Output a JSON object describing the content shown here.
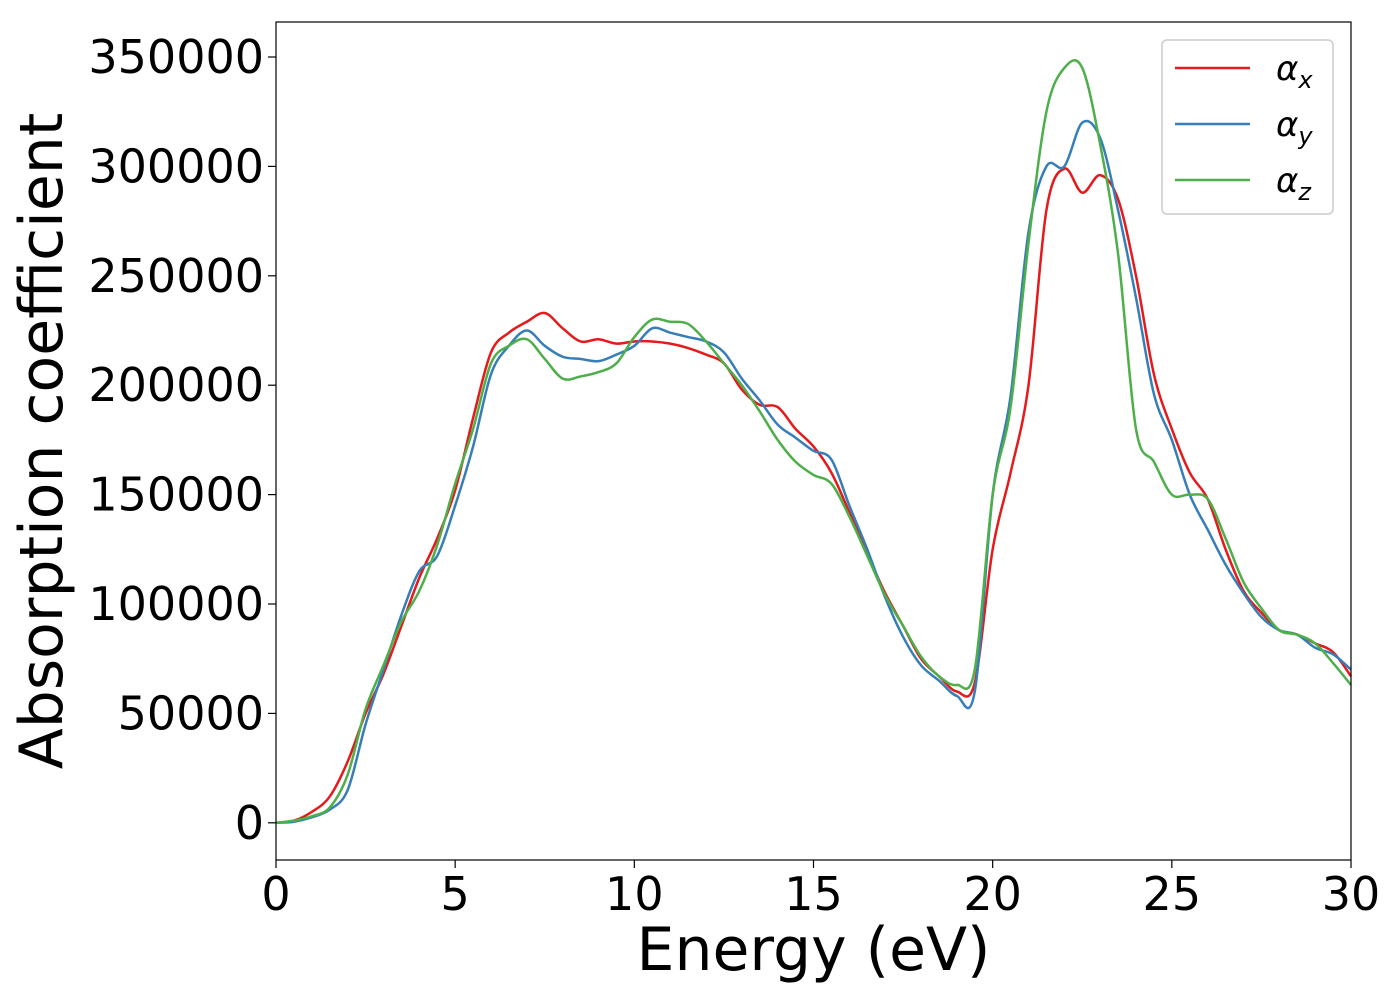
{
  "chart_data": {
    "type": "line",
    "title": "",
    "xlabel": "Energy (eV)",
    "ylabel": "Absorption coefficient",
    "xlim": [
      0,
      30
    ],
    "ylim": [
      -17000,
      366000
    ],
    "xticks": [
      0,
      5,
      10,
      15,
      20,
      25,
      30
    ],
    "yticks": [
      0,
      50000,
      100000,
      150000,
      200000,
      250000,
      300000,
      350000
    ],
    "grid": false,
    "legend_position": "top-right",
    "series": [
      {
        "name": "αx",
        "name_base": "α",
        "name_sub": "x",
        "color": "#e41a1c",
        "x": [
          0,
          0.5,
          1,
          1.5,
          2,
          2.5,
          3,
          3.5,
          4,
          4.5,
          5,
          5.5,
          6,
          6.5,
          7,
          7.5,
          8,
          8.5,
          9,
          9.5,
          10,
          10.5,
          11,
          11.5,
          12,
          12.5,
          13,
          13.5,
          14,
          14.5,
          15,
          15.5,
          16,
          16.5,
          17,
          17.5,
          18,
          18.5,
          19,
          19.5,
          20,
          20.5,
          21,
          21.5,
          22,
          22.5,
          23,
          23.5,
          24,
          24.5,
          25,
          25.5,
          26,
          26.5,
          27,
          27.5,
          28,
          28.5,
          29,
          29.5,
          30
        ],
        "y": [
          0,
          1000,
          5000,
          12000,
          28000,
          50000,
          68000,
          90000,
          112000,
          130000,
          152000,
          185000,
          215000,
          224000,
          229000,
          233000,
          226000,
          220000,
          221000,
          219000,
          220000,
          220000,
          219000,
          217000,
          214000,
          210000,
          198000,
          191000,
          190000,
          180000,
          172000,
          160000,
          142000,
          123000,
          105000,
          90000,
          75000,
          67000,
          60000,
          64000,
          125000,
          160000,
          200000,
          280000,
          299000,
          288000,
          296000,
          285000,
          250000,
          205000,
          180000,
          160000,
          148000,
          125000,
          106000,
          96000,
          88000,
          86000,
          82000,
          78000,
          67000
        ]
      },
      {
        "name": "αy",
        "name_base": "α",
        "name_sub": "y",
        "color": "#377eb8",
        "x": [
          0,
          0.5,
          1,
          1.5,
          2,
          2.5,
          3,
          3.5,
          4,
          4.5,
          5,
          5.5,
          6,
          6.5,
          7,
          7.5,
          8,
          8.5,
          9,
          9.5,
          10,
          10.5,
          11,
          11.5,
          12,
          12.5,
          13,
          13.5,
          14,
          14.5,
          15,
          15.5,
          16,
          16.5,
          17,
          17.5,
          18,
          18.5,
          19,
          19.5,
          20,
          20.5,
          21,
          21.5,
          22,
          22.5,
          23,
          23.5,
          24,
          24.5,
          25,
          25.5,
          26,
          26.5,
          27,
          27.5,
          28,
          28.5,
          29,
          29.5,
          30
        ],
        "y": [
          0,
          500,
          2500,
          6000,
          15000,
          45000,
          70000,
          95000,
          115000,
          122000,
          145000,
          172000,
          205000,
          218000,
          225000,
          218000,
          213000,
          212000,
          211000,
          214000,
          218000,
          226000,
          224000,
          222000,
          220000,
          215000,
          203000,
          193000,
          182000,
          176000,
          170000,
          166000,
          145000,
          125000,
          103000,
          85000,
          72000,
          65000,
          58000,
          60000,
          150000,
          195000,
          270000,
          300000,
          300000,
          320000,
          313000,
          280000,
          240000,
          196000,
          175000,
          150000,
          134000,
          118000,
          105000,
          94000,
          88000,
          86000,
          80000,
          77000,
          70000
        ]
      },
      {
        "name": "αz",
        "name_base": "α",
        "name_sub": "z",
        "color": "#4daf4a",
        "x": [
          0,
          0.5,
          1,
          1.5,
          2,
          2.5,
          3,
          3.5,
          4,
          4.5,
          5,
          5.5,
          6,
          6.5,
          7,
          7.5,
          8,
          8.5,
          9,
          9.5,
          10,
          10.5,
          11,
          11.5,
          12,
          12.5,
          13,
          13.5,
          14,
          14.5,
          15,
          15.5,
          16,
          16.5,
          17,
          17.5,
          18,
          18.5,
          19,
          19.5,
          20,
          20.5,
          21,
          21.5,
          22,
          22.5,
          23,
          23.5,
          24,
          24.5,
          25,
          25.5,
          26,
          26.5,
          27,
          27.5,
          28,
          28.5,
          29,
          29.5,
          30
        ],
        "y": [
          0,
          1000,
          3000,
          7000,
          22000,
          52000,
          72000,
          92000,
          106000,
          127000,
          155000,
          180000,
          210000,
          218000,
          221000,
          212000,
          203000,
          204000,
          206000,
          210000,
          222000,
          230000,
          229000,
          228000,
          220000,
          210000,
          200000,
          188000,
          175000,
          165000,
          159000,
          155000,
          140000,
          122000,
          104000,
          90000,
          76000,
          67000,
          63000,
          70000,
          150000,
          190000,
          265000,
          325000,
          345000,
          345000,
          310000,
          260000,
          180000,
          165000,
          150000,
          150000,
          148000,
          130000,
          110000,
          98000,
          88000,
          86000,
          82000,
          73000,
          63000
        ]
      }
    ]
  }
}
